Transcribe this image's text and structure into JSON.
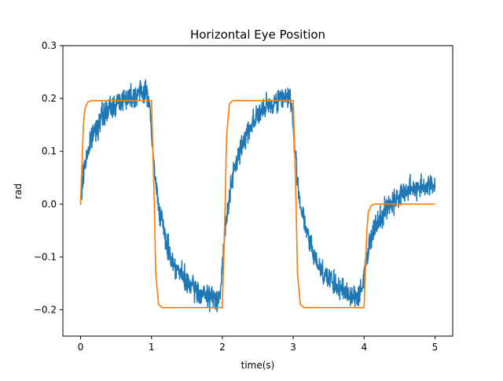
{
  "chart_data": {
    "type": "line",
    "title": "Horizontal Eye Position",
    "xlabel": "time(s)",
    "ylabel": "rad",
    "xlim": [
      -0.25,
      5.25
    ],
    "ylim": [
      -0.25,
      0.3
    ],
    "xticks": [
      0,
      1,
      2,
      3,
      4,
      5
    ],
    "xtick_labels": [
      "0",
      "1",
      "2",
      "3",
      "4",
      "5"
    ],
    "yticks": [
      -0.2,
      -0.1,
      0.0,
      0.1,
      0.2,
      0.3
    ],
    "ytick_labels": [
      "−0.2",
      "−0.1",
      "0.0",
      "0.1",
      "0.2",
      "0.3"
    ],
    "grid": false,
    "legend": false,
    "series": [
      {
        "color": "#1f77b4",
        "noisy": true,
        "x": [
          0,
          0.05,
          0.1,
          0.2,
          0.3,
          0.4,
          0.5,
          0.6,
          0.7,
          0.8,
          0.9,
          0.97,
          1.0,
          1.05,
          1.1,
          1.2,
          1.3,
          1.4,
          1.5,
          1.6,
          1.7,
          1.8,
          1.9,
          1.97,
          2.0,
          2.05,
          2.1,
          2.2,
          2.3,
          2.4,
          2.5,
          2.6,
          2.7,
          2.8,
          2.9,
          2.97,
          3.0,
          3.05,
          3.1,
          3.2,
          3.3,
          3.4,
          3.5,
          3.6,
          3.7,
          3.8,
          3.9,
          3.97,
          4.0,
          4.05,
          4.1,
          4.2,
          4.3,
          4.4,
          4.5,
          4.6,
          4.7,
          4.8,
          4.9,
          5.0
        ],
        "y": [
          0.0,
          0.07,
          0.1,
          0.14,
          0.165,
          0.18,
          0.19,
          0.2,
          0.205,
          0.21,
          0.215,
          0.2,
          0.13,
          0.05,
          0.0,
          -0.07,
          -0.11,
          -0.13,
          -0.15,
          -0.16,
          -0.17,
          -0.175,
          -0.18,
          -0.17,
          -0.12,
          -0.04,
          0.02,
          0.08,
          0.12,
          0.15,
          0.17,
          0.18,
          0.19,
          0.2,
          0.205,
          0.2,
          0.14,
          0.06,
          0.0,
          -0.06,
          -0.1,
          -0.125,
          -0.14,
          -0.155,
          -0.165,
          -0.17,
          -0.175,
          -0.165,
          -0.13,
          -0.09,
          -0.06,
          -0.03,
          -0.01,
          0.005,
          0.015,
          0.025,
          0.03,
          0.035,
          0.035,
          0.035
        ]
      },
      {
        "color": "#ff7f0e",
        "noisy": false,
        "x": [
          0,
          0.02,
          0.04,
          0.06,
          0.1,
          0.15,
          1.0,
          1.02,
          1.04,
          1.06,
          1.1,
          1.15,
          2.0,
          2.02,
          2.04,
          2.06,
          2.1,
          2.15,
          3.0,
          3.02,
          3.04,
          3.06,
          3.1,
          3.15,
          4.0,
          4.02,
          4.04,
          4.06,
          4.1,
          4.15,
          5.0
        ],
        "y": [
          0.0,
          0.08,
          0.15,
          0.18,
          0.193,
          0.196,
          0.196,
          0.1,
          0.0,
          -0.13,
          -0.19,
          -0.196,
          -0.196,
          -0.1,
          0.0,
          0.13,
          0.19,
          0.196,
          0.196,
          0.1,
          0.0,
          -0.13,
          -0.19,
          -0.196,
          -0.196,
          -0.11,
          -0.05,
          -0.015,
          -0.003,
          0.0,
          0.0
        ]
      }
    ]
  }
}
